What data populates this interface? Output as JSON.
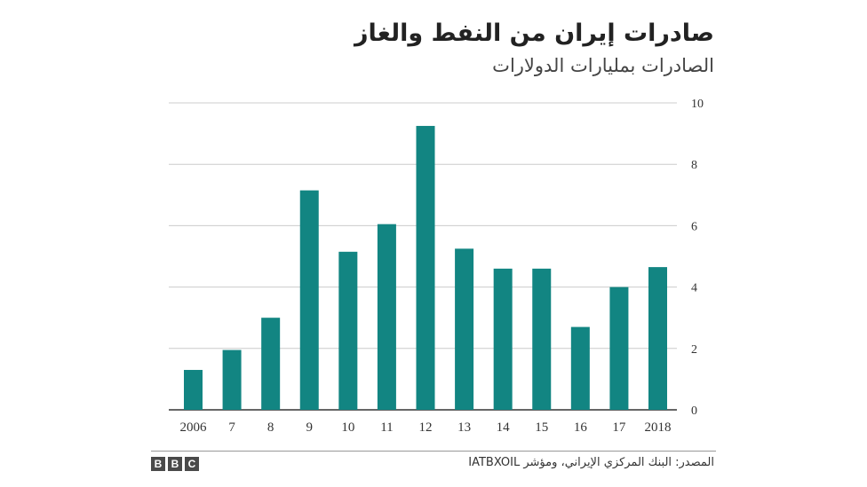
{
  "title": "صادرات إيران من النفط والغاز",
  "subtitle": "الصادرات بمليارات الدولارات",
  "source": "المصدر: البنك المركزي الإيراني، ومؤشر IATBXOIL",
  "logo": [
    "B",
    "B",
    "C"
  ],
  "colors": {
    "bar": "#128582",
    "grid": "#cccccc",
    "axis": "#333333"
  },
  "chart_data": {
    "type": "bar",
    "categories": [
      "2006",
      "7",
      "8",
      "9",
      "10",
      "11",
      "12",
      "13",
      "14",
      "15",
      "16",
      "17",
      "2018"
    ],
    "values": [
      1.3,
      1.95,
      3.0,
      7.15,
      5.15,
      6.05,
      9.25,
      5.25,
      4.6,
      4.6,
      2.7,
      4.0,
      4.65
    ],
    "ylim": [
      0,
      10
    ],
    "yticks": [
      0,
      2,
      4,
      6,
      8,
      10
    ],
    "grid": true,
    "yaxis_side": "right"
  }
}
